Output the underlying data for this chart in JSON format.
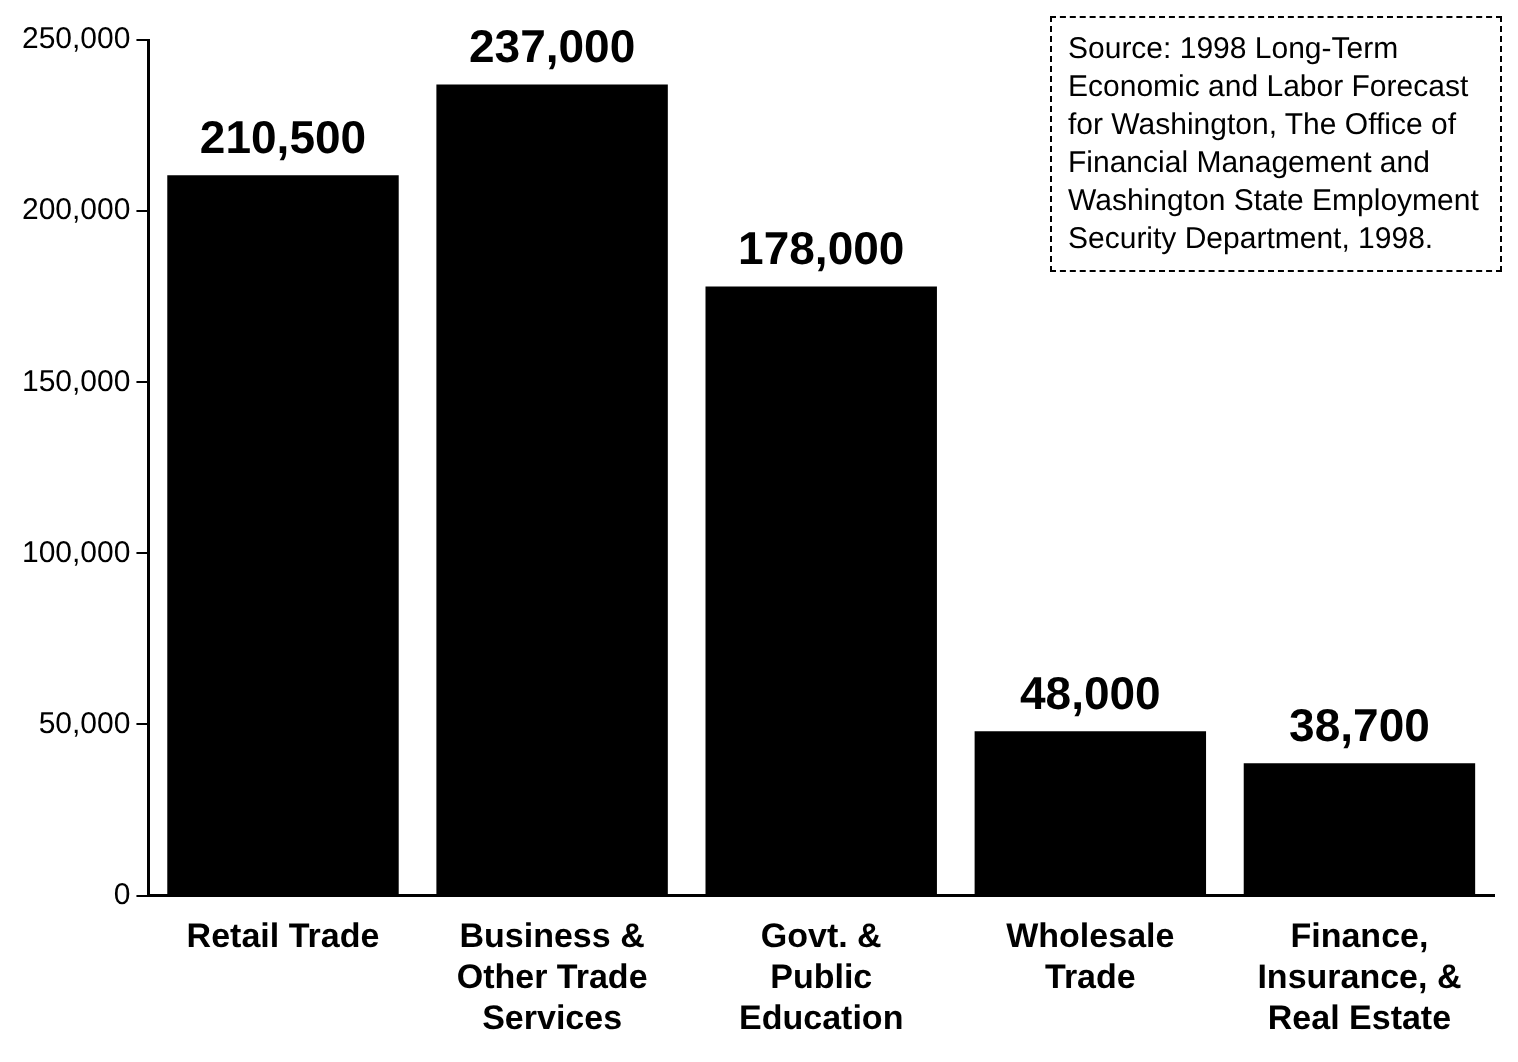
{
  "chart_data": {
    "type": "bar",
    "categories": [
      "Retail Trade",
      "Business & Other Trade Services",
      "Govt. & Public Education",
      "Wholesale Trade",
      "Finance, Insurance, & Real Estate"
    ],
    "values": [
      210500,
      237000,
      178000,
      48000,
      38700
    ],
    "color": "#000000",
    "ylim": [
      0,
      250000
    ],
    "yticks": [
      {
        "value": 0,
        "label": "0"
      },
      {
        "value": 50000,
        "label": "50,000"
      },
      {
        "value": 100000,
        "label": "100,000"
      },
      {
        "value": 150000,
        "label": "150,000"
      },
      {
        "value": 200000,
        "label": "200,000"
      },
      {
        "value": 250000,
        "label": "250,000"
      }
    ],
    "value_labels": [
      "210,500",
      "237,000",
      "178,000",
      "48,000",
      "38,700"
    ],
    "grid": false,
    "legend": false,
    "annotations": [
      "Source: 1998 Long-Term Economic and Labor Forecast for Washington, The Office of Financial Management and Washington State Employment Security Department, 1998."
    ]
  }
}
